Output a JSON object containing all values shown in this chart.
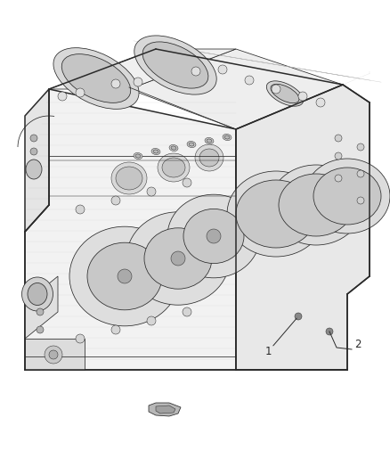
{
  "background_color": "#ffffff",
  "line_color": "#2a2a2a",
  "fig_width": 4.38,
  "fig_height": 5.33,
  "dpi": 100,
  "callout_1_label": "1",
  "callout_2_label": "2",
  "label_fontsize": 8.5,
  "lw_outer": 1.1,
  "lw_inner": 0.55,
  "lw_thin": 0.35,
  "block_color_top": "#f5f5f5",
  "block_color_front": "#eeeeee",
  "block_color_right": "#e8e8e8",
  "block_color_left": "#e2e2e2",
  "hatch_color": "#bbbbbb"
}
